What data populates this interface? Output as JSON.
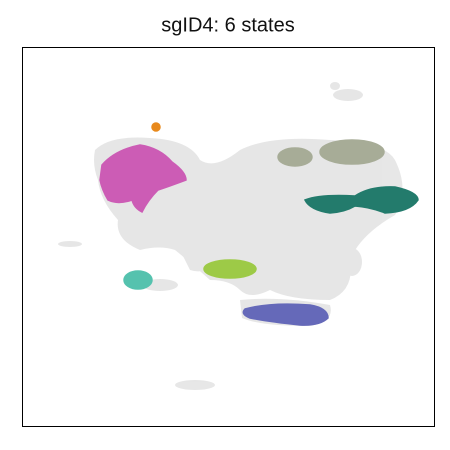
{
  "chart_data": {
    "type": "scatter",
    "title": "sgID4: 6 states",
    "background_color": "#e4e4e4",
    "colors": [
      "#e8891c",
      "#cc5cb5",
      "#a7ac97",
      "#237b6c",
      "#9dca47",
      "#55c2ae",
      "#6569b9"
    ]
  }
}
